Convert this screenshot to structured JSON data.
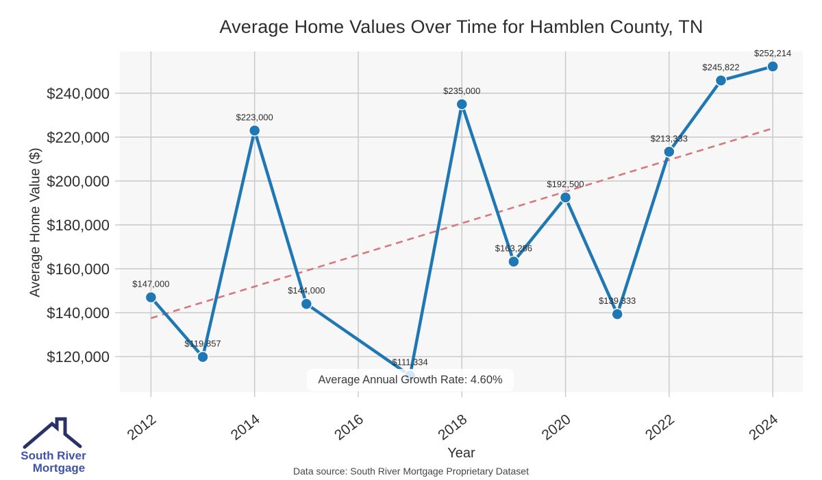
{
  "title": "Average Home Values Over Time for Hamblen County, TN",
  "chart_data": {
    "type": "line",
    "title": "Average Home Values Over Time for Hamblen County, TN",
    "xlabel": "Year",
    "ylabel": "Average Home Value ($)",
    "x": [
      2012,
      2013,
      2014,
      2015,
      2017,
      2018,
      2019,
      2020,
      2021,
      2022,
      2023,
      2024
    ],
    "values": [
      147000,
      119857,
      223000,
      144000,
      111334,
      235000,
      163286,
      192500,
      139333,
      213333,
      245822,
      252214
    ],
    "point_labels": [
      "$147,000",
      "$119,857",
      "$223,000",
      "$144,000",
      "$111,334",
      "$235,000",
      "$163,286",
      "$192,500",
      "$139,333",
      "$213,333",
      "$245,822",
      "$252,214"
    ],
    "xticks": [
      2012,
      2014,
      2016,
      2018,
      2020,
      2022,
      2024
    ],
    "yticks": [
      120000,
      140000,
      160000,
      180000,
      200000,
      220000,
      240000
    ],
    "ytick_labels": [
      "$120,000",
      "$140,000",
      "$160,000",
      "$180,000",
      "$200,000",
      "$220,000",
      "$240,000"
    ],
    "xlim": [
      2011.4,
      2024.58
    ],
    "ylim": [
      103750,
      259050
    ],
    "grid": true,
    "legend": "none",
    "trend": {
      "type": "linear",
      "style": "dashed",
      "x": [
        2012,
        2024
      ],
      "values": [
        137500,
        224000
      ],
      "color": "#d6787d"
    },
    "annotation": {
      "text": "Average Annual Growth Rate: 4.60%"
    },
    "colors": {
      "line": "#1f77b4",
      "marker": "#1f77b4",
      "marker_edge": "#ffffff",
      "plot_background": "#f7f7f7",
      "grid": "#cccccc",
      "tick_label": "#2f2f2f",
      "data_label": "#2d2d2d"
    }
  },
  "caption": "Data source: South River Mortgage Proprietary Dataset",
  "logo": {
    "line1": "South River",
    "line2": "Mortgage",
    "text_color": "#3e53a5",
    "roof_color": "#2a3168"
  }
}
